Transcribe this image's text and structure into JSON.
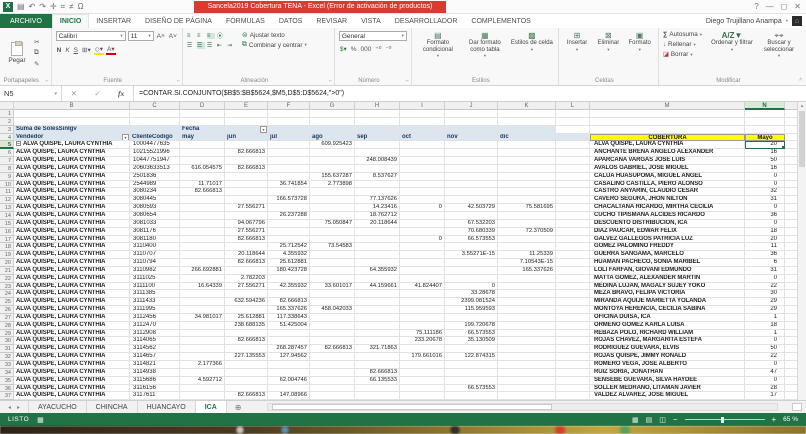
{
  "title_bar": {
    "title": "Sancela2019 Cobertura TENA - Excel (Error de activación de productos)",
    "qat_icons": [
      "excel-logo",
      "save",
      "undo",
      "redo",
      "custom-1",
      "custom-2",
      "custom-3",
      "omega"
    ],
    "omega": "Ω",
    "help": "?",
    "minimize": "—",
    "restore": "◻",
    "close": "✕"
  },
  "ribbon": {
    "tabs": [
      "ARCHIVO",
      "INICIO",
      "INSERTAR",
      "DISEÑO DE PÁGINA",
      "FÓRMULAS",
      "DATOS",
      "REVISAR",
      "VISTA",
      "DESARROLLADOR",
      "COMPLEMENTOS"
    ],
    "active_tab": "INICIO",
    "user_name": "Diego Trujillano Anampa",
    "portapapeles": {
      "label": "Portapapeles",
      "paste": "Pegar"
    },
    "fuente": {
      "label": "Fuente",
      "font": "Calibri",
      "size": "11",
      "bold": "N",
      "italic": "K",
      "underline": "S"
    },
    "alineacion": {
      "label": "Alineación",
      "wrap": "Ajustar texto",
      "merge": "Combinar y centrar"
    },
    "numero": {
      "label": "Número",
      "format": "General"
    },
    "estilos": {
      "label": "Estilos",
      "cond": "Formato condicional",
      "table": "Dar formato como tabla",
      "styles": "Estilos de celda"
    },
    "celdas": {
      "label": "Celdas",
      "insert": "Insertar",
      "delete": "Eliminar",
      "format": "Formato"
    },
    "modificar": {
      "label": "Modificar",
      "autosum": "Autosuma",
      "fill": "Rellenar",
      "clear": "Borrar",
      "sort": "Ordenar y filtrar",
      "find": "Buscar y seleccionar"
    }
  },
  "formula_bar": {
    "name_box": "N5",
    "cancel": "✕",
    "enter": "✓",
    "fx": "fx",
    "formula": "=CONTAR.SI.CONJUNTO($B$5:$B$5624,$M5,D$5:D$5624,\">0\")"
  },
  "sheet": {
    "selected_cell": "N5",
    "column_letters": [
      "B",
      "C",
      "D",
      "E",
      "F",
      "G",
      "H",
      "I",
      "J",
      "K",
      "L",
      "M",
      "N"
    ],
    "pivot_title": "Suma de SolesSinIgv",
    "fecha_label": "Fecha",
    "vendedor_label": "Vendedor",
    "cliente_label": "ClienteCodigo",
    "months": [
      "may",
      "jun",
      "jul",
      "ago",
      "sep",
      "oct",
      "nov",
      "dic"
    ],
    "cobertura_header": "COBERTURA",
    "mayo_header": "Mayo",
    "vendor_repeat": "ALVA QUISPE, LAURA CYNTHIA",
    "rows": [
      {
        "c": "10004477635",
        "v": {
          "ago": "609.925423"
        },
        "cob": "ALVA QUISPE, LAURA CYNTHIA",
        "n": "20",
        "x": true,
        "sel": true
      },
      {
        "c": "10215521996",
        "v": {
          "jun": "82.666813"
        },
        "cob": "ANCHANTE BREÑA ANGELO ALEXANDER",
        "n": "16"
      },
      {
        "c": "10447751947",
        "v": {
          "sep": "248.008439"
        },
        "cob": "APARCANA VARGAS JOSE LUIS",
        "n": "50"
      },
      {
        "c": "20603633513",
        "v": {
          "may": "616.054575",
          "jun": "82.666813"
        },
        "cob": "AVALOS GABRIEL, JOSE MIGUEL",
        "n": "16"
      },
      {
        "c": "2501836",
        "v": {
          "ago": "155.637287",
          "sep": "8.537627"
        },
        "cob": "CALUA HUASUPOMA, MIGUEL ANGEL",
        "n": "0"
      },
      {
        "c": "2544989",
        "v": {
          "may": "11.71017",
          "jul": "36.741854",
          "ago": "2.773898"
        },
        "cob": "CASALINO CASTILLA, PIERO ALONSO",
        "n": "0"
      },
      {
        "c": "3080234",
        "v": {
          "may": "82.666813"
        },
        "cob": "CASTRO ANYARIN, CLAUDIO CESAR",
        "n": "32"
      },
      {
        "c": "3080445",
        "v": {
          "jul": "166.573728",
          "sep": "77.137626"
        },
        "cob": "CAVERO SEGURA, JHON NILTON",
        "n": "31"
      },
      {
        "c": "3080593",
        "v": {
          "jun": "27.556271",
          "sep": "14.23416",
          "oct": "0",
          "nov": "42.503729",
          "dic": "75.581695"
        },
        "cob": "CHACALTANA RICARDO, MIRTHA CECILIA",
        "n": "0"
      },
      {
        "c": "3080654",
        "v": {
          "jul": "26.237288",
          "sep": "18.762712"
        },
        "cob": "CUCHO TIPISMANA ALCIDES RICARDO",
        "n": "36"
      },
      {
        "c": "3081033",
        "v": {
          "jun": "94.067796",
          "ago": "75.050847",
          "sep": "20.118644",
          "nov": "67.532203"
        },
        "cob": "DESCUENTO DISTRIBUCION, ICA",
        "n": "0"
      },
      {
        "c": "3081176",
        "v": {
          "jun": "27.556271",
          "nov": "70.680339",
          "dic": "72.370509"
        },
        "cob": "DIAZ PAUCAR, EDWAR FELIX",
        "n": "18"
      },
      {
        "c": "3081180",
        "v": {
          "jun": "82.666813",
          "oct": "0",
          "nov": "66.573553"
        },
        "cob": "GALVEZ GALLEGOS PATRICIA LUZ",
        "n": "20"
      },
      {
        "c": "3110400",
        "v": {
          "jul": "25.712542",
          "ago": "73.54583"
        },
        "cob": "GOMEZ PALOMINO FREDDY",
        "n": "11"
      },
      {
        "c": "3110707",
        "v": {
          "jun": "20.118644",
          "jul": "4.355932",
          "nov": "3.55271E-15",
          "dic": "11.25339"
        },
        "cob": "GUERRA SANGAMA, MARCELO",
        "n": "36"
      },
      {
        "c": "3110794",
        "v": {
          "jun": "82.666813",
          "jul": "25.612881",
          "dic": "7.10543E-15"
        },
        "cob": "HUAMAN PACHECO, SONIA MARIBEL",
        "n": "6"
      },
      {
        "c": "3110982",
        "v": {
          "may": "266.692881",
          "jul": "180.423728",
          "sep": "64.355932",
          "dic": "165.337626"
        },
        "cob": "LOLI FARFAN, GIOVANI EDMUNDO",
        "n": "31"
      },
      {
        "c": "3111025",
        "v": {
          "jun": "2.782203"
        },
        "cob": "MATTA GOMEZ, ALEXANDER MARTIN",
        "n": "0"
      },
      {
        "c": "3111100",
        "v": {
          "may": "16.64339",
          "jun": "27.556271",
          "jul": "42.355932",
          "ago": "33.601017",
          "sep": "44.159661",
          "oct": "41.824407",
          "nov": "0"
        },
        "cob": "MEDINA LUJAN, MAGALY SUJEY YOKO",
        "n": "22"
      },
      {
        "c": "3111385",
        "v": {
          "nov": "33.28678"
        },
        "cob": "MEZA BRAVO, FELIPA VICTORIA",
        "n": "30"
      },
      {
        "c": "3111433",
        "v": {
          "jun": "632.594236",
          "jul": "82.666813",
          "nov": "2399.081524"
        },
        "cob": "MIRANDA AQUIJE MARIETTA YOLANDA",
        "n": "29"
      },
      {
        "c": "3111995",
        "v": {
          "jul": "165.337626",
          "ago": "458.042033",
          "nov": "115.959593"
        },
        "cob": "MONTOYA HERENCIA, CECILIA SABINA",
        "n": "29"
      },
      {
        "c": "3112456",
        "v": {
          "may": "34.981017",
          "jun": "25.612881",
          "jul": "117.338643"
        },
        "cob": "OFICINA DUISA, ICA",
        "n": "1"
      },
      {
        "c": "3112470",
        "v": {
          "jun": "238.688135",
          "jul": "51.425004",
          "nov": "199.720678"
        },
        "cob": "ORMEÑO GOMEZ KARLA LUISA",
        "n": "18"
      },
      {
        "c": "3112908",
        "v": {
          "oct": "75.111186",
          "nov": "66.573553"
        },
        "cob": "REBAZA POLO, RICHARD WILLIAM",
        "n": "1"
      },
      {
        "c": "3114065",
        "v": {
          "jun": "82.666813",
          "oct": "233.20678",
          "nov": "35.130509"
        },
        "cob": "ROJAS CHAVEZ, MARGARITA ESTEFA",
        "n": "0"
      },
      {
        "c": "3114562",
        "v": {
          "jul": "268.287457",
          "ago": "82.666813",
          "sep": "321.71863"
        },
        "cob": "RODRIGUEZ GUEVARA, ELVIS",
        "n": "50"
      },
      {
        "c": "3114657",
        "v": {
          "jun": "227.135553",
          "jul": "127.94562",
          "oct": "179.661016",
          "nov": "122.874315"
        },
        "cob": "ROJAS QUISPE, JIMMY RONALD",
        "n": "22"
      },
      {
        "c": "3114821",
        "v": {
          "may": "2.177366"
        },
        "cob": "ROMERO VEGA, JOSE ALBERTO",
        "n": "0"
      },
      {
        "c": "3114938",
        "v": {
          "sep": "82.666813"
        },
        "cob": "RUIZ SORIA, JONATHAN",
        "n": "47"
      },
      {
        "c": "3115686",
        "v": {
          "may": "4.592712",
          "jul": "62.004746",
          "sep": "66.135533"
        },
        "cob": "SENSEBE GUEVARA, SILVA HAYDEE",
        "n": "0"
      },
      {
        "c": "3116156",
        "v": {
          "nov": "66.573553"
        },
        "cob": "SOLLER MEDRANO, LITAMAN JAVIER",
        "n": "28"
      },
      {
        "c": "3117611",
        "v": {
          "jun": "82.666813",
          "jul": "147.08966"
        },
        "cob": "VALDEZ ALVAREZ, JOSE MIGUEL",
        "n": "17"
      }
    ]
  },
  "sheet_tabs": {
    "nav_left": "◂",
    "nav_right": "▸",
    "sheets": [
      "AYACUCHO",
      "CHINCHA",
      "HUANCAYO",
      "ICA"
    ],
    "active": "ICA",
    "add": "⊕"
  },
  "status_bar": {
    "mode": "LISTO",
    "zoom": "65 %"
  },
  "colors": {
    "excel_green": "#217346",
    "banner_red": "#d93b33",
    "header_yellow": "#ffff00",
    "pivot_band_blue": "#dce6f1"
  }
}
